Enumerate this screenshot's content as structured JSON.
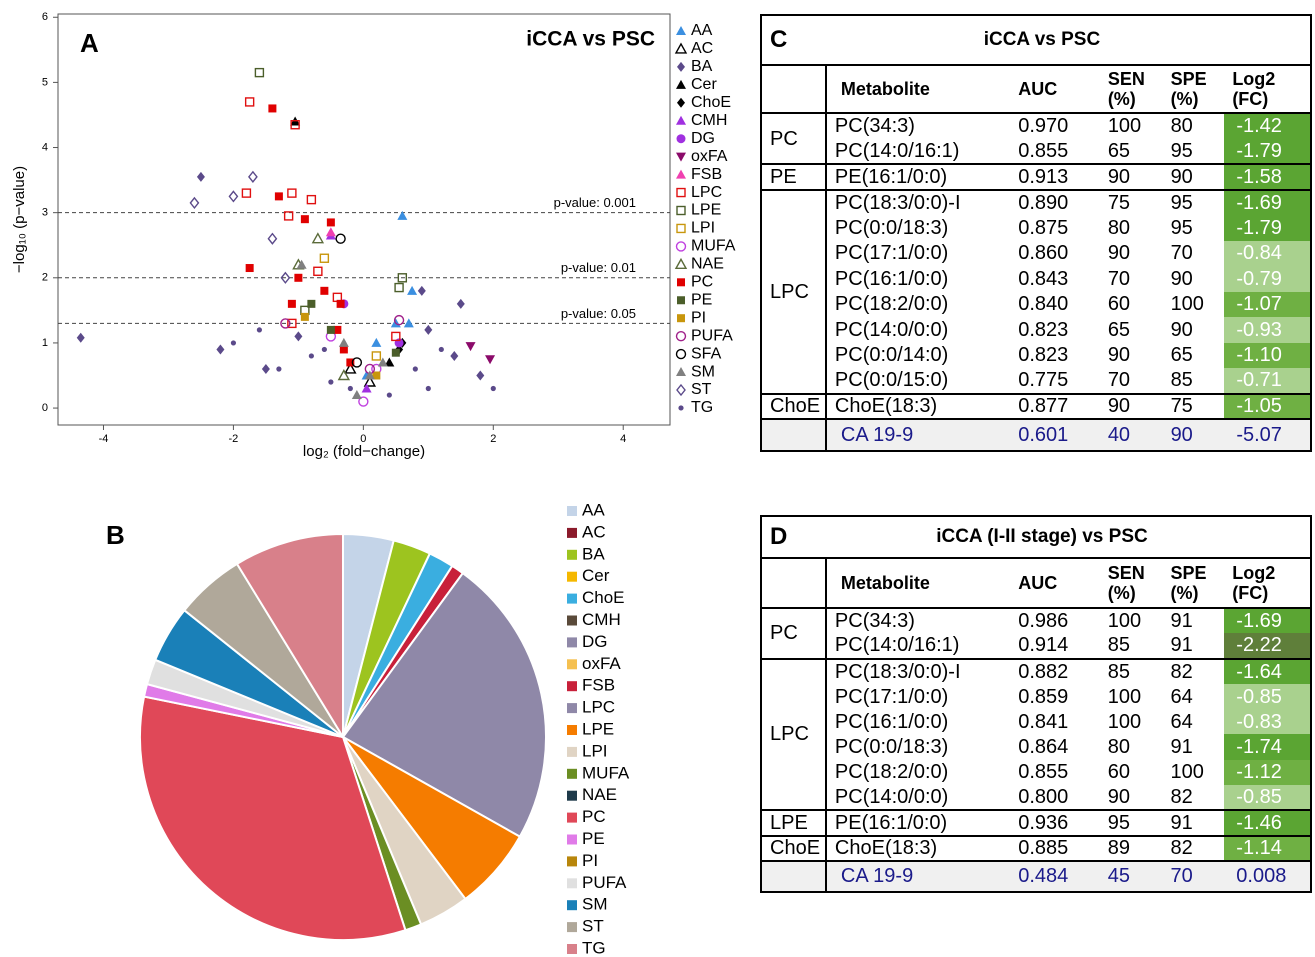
{
  "chart_data": [
    {
      "type": "scatter",
      "panel": "A",
      "title": "iCCA vs PSC",
      "x_label": "log₂ (fold−change)",
      "y_label": "−log₁₀ (p−value)",
      "xlim": [
        -4.7,
        4.72
      ],
      "ylim": [
        -0.26,
        6.05
      ],
      "xticks": [
        -4,
        -2,
        0,
        2,
        4
      ],
      "yticks": [
        0,
        1,
        2,
        3,
        4,
        5,
        6
      ],
      "thresholds": [
        {
          "value": 3,
          "label": "p-value: 0.001"
        },
        {
          "value": 2,
          "label": "p-value: 0.01"
        },
        {
          "value": 1.3,
          "label": "p-value: 0.05"
        }
      ],
      "series": [
        {
          "name": "AA",
          "color": "#3b8fe0",
          "marker": "triangle",
          "x": [
            0.6,
            0.75,
            0.2,
            0.5,
            0.05,
            0.7
          ],
          "y": [
            2.95,
            1.8,
            1.0,
            1.3,
            0.5,
            1.3
          ]
        },
        {
          "name": "AC",
          "color": "#000000",
          "marker": "triangle-open",
          "x": [
            0.1,
            -0.2
          ],
          "y": [
            0.4,
            0.6
          ]
        },
        {
          "name": "BA",
          "color": "#5b4a8a",
          "marker": "diamond",
          "x": [
            -4.35,
            -2.5,
            1.0,
            1.4,
            -1.5,
            -2.2,
            1.5,
            0.9,
            -1.0,
            1.8
          ],
          "y": [
            1.08,
            3.55,
            1.2,
            0.8,
            0.6,
            0.9,
            1.6,
            1.8,
            1.1,
            0.5
          ]
        },
        {
          "name": "Cer",
          "color": "#000000",
          "marker": "triangle",
          "x": [
            -1.05,
            0.4
          ],
          "y": [
            4.4,
            0.7
          ]
        },
        {
          "name": "ChoE",
          "color": "#000000",
          "marker": "diamond",
          "x": [
            0.55,
            0.6
          ],
          "y": [
            0.9,
            1.0
          ]
        },
        {
          "name": "CMH",
          "color": "#a030e0",
          "marker": "triangle",
          "x": [
            -0.5,
            0.05
          ],
          "y": [
            2.65,
            0.3
          ]
        },
        {
          "name": "DG",
          "color": "#a030e0",
          "marker": "circle",
          "x": [
            0.55,
            -0.3
          ],
          "y": [
            1.0,
            1.6
          ]
        },
        {
          "name": "oxFA",
          "color": "#8b0a6a",
          "marker": "triangle-down",
          "x": [
            1.65,
            1.95
          ],
          "y": [
            0.95,
            0.75
          ]
        },
        {
          "name": "FSB",
          "color": "#f040b0",
          "marker": "triangle",
          "x": [
            -0.5
          ],
          "y": [
            2.7
          ]
        },
        {
          "name": "LPC",
          "color": "#e01010",
          "marker": "square-open",
          "x": [
            -1.75,
            -1.05,
            -1.8,
            -1.1,
            -0.8,
            -1.15,
            -0.7,
            -0.4,
            -1.1,
            0.5
          ],
          "y": [
            4.7,
            4.35,
            3.3,
            3.3,
            3.2,
            2.95,
            2.1,
            1.7,
            1.3,
            1.1
          ]
        },
        {
          "name": "LPE",
          "color": "#4b5e2a",
          "marker": "square-open",
          "x": [
            -1.6,
            0.6,
            0.55,
            -0.9
          ],
          "y": [
            5.15,
            2.0,
            1.85,
            1.5
          ]
        },
        {
          "name": "LPI",
          "color": "#c8960c",
          "marker": "square-open",
          "x": [
            -0.6,
            0.2
          ],
          "y": [
            2.3,
            0.8
          ]
        },
        {
          "name": "MUFA",
          "color": "#c040e0",
          "marker": "circle-open",
          "x": [
            -0.5,
            0.0,
            0.2
          ],
          "y": [
            1.1,
            0.1,
            0.6
          ]
        },
        {
          "name": "NAE",
          "color": "#5b6b3a",
          "marker": "triangle-open",
          "x": [
            -0.7,
            -1.0,
            -0.3
          ],
          "y": [
            2.6,
            2.2,
            0.5
          ]
        },
        {
          "name": "PC",
          "color": "#e00000",
          "marker": "square",
          "x": [
            -1.4,
            -0.5,
            -1.75,
            -1.3,
            -0.9,
            -1.0,
            -0.6,
            -0.4,
            -0.3,
            -0.35,
            -1.1,
            -0.2
          ],
          "y": [
            4.6,
            2.85,
            2.15,
            3.25,
            2.9,
            2.0,
            1.8,
            1.2,
            0.9,
            1.6,
            1.6,
            0.7
          ]
        },
        {
          "name": "PE",
          "color": "#4b5e2a",
          "marker": "square",
          "x": [
            -0.8,
            0.5,
            -0.5
          ],
          "y": [
            1.6,
            0.85,
            1.2
          ]
        },
        {
          "name": "PI",
          "color": "#c8960c",
          "marker": "square",
          "x": [
            -0.9,
            0.2
          ],
          "y": [
            1.4,
            0.5
          ]
        },
        {
          "name": "PUFA",
          "color": "#a0208a",
          "marker": "circle-open",
          "x": [
            -1.2,
            0.55,
            0.1
          ],
          "y": [
            1.3,
            1.35,
            0.6
          ]
        },
        {
          "name": "SFA",
          "color": "#000000",
          "marker": "circle-open",
          "x": [
            -0.35,
            -0.1
          ],
          "y": [
            2.6,
            0.7
          ]
        },
        {
          "name": "SM",
          "color": "#808080",
          "marker": "triangle",
          "x": [
            -0.95,
            -0.3,
            0.1,
            0.3,
            -0.1
          ],
          "y": [
            2.2,
            1.0,
            0.5,
            0.7,
            0.2
          ]
        },
        {
          "name": "ST",
          "color": "#5b4a8a",
          "marker": "diamond-open",
          "x": [
            -2.6,
            -2.0,
            -1.7,
            -1.2,
            -1.4
          ],
          "y": [
            3.15,
            3.25,
            3.55,
            2.0,
            2.6
          ]
        },
        {
          "name": "TG",
          "color": "#5b4a8a",
          "marker": "dot",
          "x": [
            -0.8,
            -1.3,
            -0.5,
            1.2,
            0.8,
            -2.0,
            -0.2,
            1.0,
            -1.6,
            0.4,
            2.0,
            -0.6
          ],
          "y": [
            0.8,
            0.6,
            0.4,
            0.9,
            0.6,
            1.0,
            0.3,
            0.3,
            1.2,
            0.2,
            0.3,
            0.9
          ]
        }
      ]
    },
    {
      "type": "pie",
      "panel": "B",
      "categories": [
        "AA",
        "AC",
        "BA",
        "Cer",
        "ChoE",
        "CMH",
        "DG",
        "oxFA",
        "FSB",
        "LPC",
        "LPE",
        "LPI",
        "MUFA",
        "NAE",
        "PC",
        "PE",
        "PI",
        "PUFA",
        "SM",
        "ST",
        "TG"
      ],
      "values": [
        4,
        0,
        3,
        0,
        2,
        0,
        0,
        0,
        1,
        23,
        6.5,
        4,
        1.3,
        0,
        33,
        1,
        0,
        2,
        4.5,
        5.5,
        8.7
      ],
      "colors": [
        "#c4d4e8",
        "#8b1a2b",
        "#9dc41f",
        "#f5b800",
        "#3aaee0",
        "#5a4a3a",
        "#8f88a8",
        "#f5c050",
        "#c8203a",
        "#8f88a8",
        "#f57c00",
        "#e0d4c4",
        "#6b8e23",
        "#1e3a4a",
        "#e04858",
        "#e07be8",
        "#b8860b",
        "#e0e0e0",
        "#1a80b8",
        "#b0a89a",
        "#d8808a"
      ]
    }
  ],
  "tables": [
    {
      "panel": "C",
      "title": "iCCA vs PSC",
      "columns": [
        "Metabolite",
        "AUC",
        "SEN\n(%)",
        "SPE\n(%)",
        "Log2\n(FC)"
      ],
      "groups": [
        {
          "name": "PC",
          "rows": [
            {
              "cells": [
                "PC(34:3)",
                "0.970",
                "100",
                "80",
                "-1.42"
              ],
              "fc_color": "#5ba533"
            },
            {
              "cells": [
                "PC(14:0/16:1)",
                "0.855",
                "65",
                "95",
                "-1.79"
              ],
              "fc_color": "#5ba533"
            }
          ]
        },
        {
          "name": "PE",
          "rows": [
            {
              "cells": [
                "PE(16:1/0:0)",
                "0.913",
                "90",
                "90",
                "-1.58"
              ],
              "fc_color": "#5ba533"
            }
          ]
        },
        {
          "name": "LPC",
          "rows": [
            {
              "cells": [
                "PC(18:3/0:0)-I",
                "0.890",
                "75",
                "95",
                "-1.69"
              ],
              "fc_color": "#5ba533"
            },
            {
              "cells": [
                "PC(0:0/18:3)",
                "0.875",
                "80",
                "95",
                "-1.79"
              ],
              "fc_color": "#5ba533"
            },
            {
              "cells": [
                "PC(17:1/0:0)",
                "0.860",
                "90",
                "70",
                "-0.84"
              ],
              "fc_color": "#a9d18e"
            },
            {
              "cells": [
                "PC(16:1/0:0)",
                "0.843",
                "70",
                "90",
                "-0.79"
              ],
              "fc_color": "#a9d18e"
            },
            {
              "cells": [
                "PC(18:2/0:0)",
                "0.840",
                "60",
                "100",
                "-1.07"
              ],
              "fc_color": "#6fb043"
            },
            {
              "cells": [
                "PC(14:0/0:0)",
                "0.823",
                "65",
                "90",
                "-0.93"
              ],
              "fc_color": "#a9d18e"
            },
            {
              "cells": [
                "PC(0:0/14:0)",
                "0.823",
                "90",
                "65",
                "-1.10"
              ],
              "fc_color": "#6fb043"
            },
            {
              "cells": [
                "PC(0:0/15:0)",
                "0.775",
                "70",
                "85",
                "-0.71"
              ],
              "fc_color": "#a9d18e"
            }
          ]
        },
        {
          "name": "ChoE",
          "rows": [
            {
              "cells": [
                "ChoE(18:3)",
                "0.877",
                "90",
                "75",
                "-1.05"
              ],
              "fc_color": "#6fb043"
            }
          ]
        }
      ],
      "footer": [
        "CA 19-9",
        "0.601",
        "40",
        "90",
        "-5.07"
      ]
    },
    {
      "panel": "D",
      "title": "iCCA (I-II stage) vs PSC",
      "columns": [
        "Metabolite",
        "AUC",
        "SEN\n(%)",
        "SPE\n(%)",
        "Log2\n(FC)"
      ],
      "groups": [
        {
          "name": "PC",
          "rows": [
            {
              "cells": [
                "PC(34:3)",
                "0.986",
                "100",
                "91",
                "-1.69"
              ],
              "fc_color": "#5ba533"
            },
            {
              "cells": [
                "PC(14:0/16:1)",
                "0.914",
                "85",
                "91",
                "-2.22"
              ],
              "fc_color": "#5f7f3a"
            }
          ]
        },
        {
          "name": "LPC",
          "rows": [
            {
              "cells": [
                "PC(18:3/0:0)-I",
                "0.882",
                "85",
                "82",
                "-1.64"
              ],
              "fc_color": "#5ba533"
            },
            {
              "cells": [
                "PC(17:1/0:0)",
                "0.859",
                "100",
                "64",
                "-0.85"
              ],
              "fc_color": "#a9d18e"
            },
            {
              "cells": [
                "PC(16:1/0:0)",
                "0.841",
                "100",
                "64",
                "-0.83"
              ],
              "fc_color": "#a9d18e"
            },
            {
              "cells": [
                "PC(0:0/18:3)",
                "0.864",
                "80",
                "91",
                "-1.74"
              ],
              "fc_color": "#5ba533"
            },
            {
              "cells": [
                "PC(18:2/0:0)",
                "0.855",
                "60",
                "100",
                "-1.12"
              ],
              "fc_color": "#6fb043"
            },
            {
              "cells": [
                "PC(14:0/0:0)",
                "0.800",
                "90",
                "82",
                "-0.85"
              ],
              "fc_color": "#a9d18e"
            }
          ]
        },
        {
          "name": "LPE",
          "rows": [
            {
              "cells": [
                "PE(16:1/0:0)",
                "0.936",
                "95",
                "91",
                "-1.46"
              ],
              "fc_color": "#5ba533"
            }
          ]
        },
        {
          "name": "ChoE",
          "rows": [
            {
              "cells": [
                "ChoE(18:3)",
                "0.885",
                "89",
                "82",
                "-1.14"
              ],
              "fc_color": "#6fb043"
            }
          ]
        }
      ],
      "footer": [
        "CA 19-9",
        "0.484",
        "45",
        "70",
        "0.008"
      ]
    }
  ]
}
